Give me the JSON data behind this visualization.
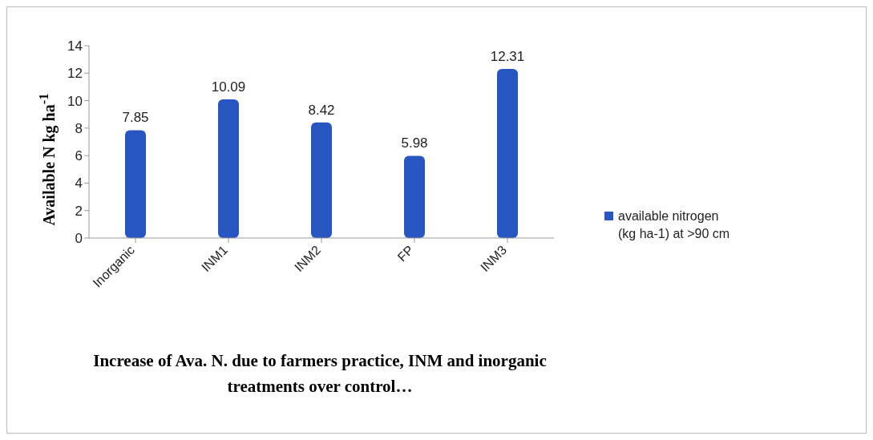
{
  "chart_data": {
    "type": "bar",
    "title": "Increase of Ava. N. due to farmers practice, INM and inorganic treatments over control…",
    "ylabel": "Available N  kg ha$^{-1}$",
    "categories": [
      "Inorganic",
      "INM1",
      "INM2",
      "FP",
      "INM3"
    ],
    "series": [
      {
        "name": "available nitrogen (kg ha-1) at >90 cm",
        "color": "#2856c0",
        "values": [
          7.85,
          10.09,
          8.42,
          5.98,
          12.31
        ]
      }
    ],
    "ylim": [
      0,
      14
    ],
    "yticks": [
      0,
      2,
      4,
      6,
      8,
      10,
      12,
      14
    ],
    "data_labels": true,
    "legend": "right",
    "grid": false
  }
}
